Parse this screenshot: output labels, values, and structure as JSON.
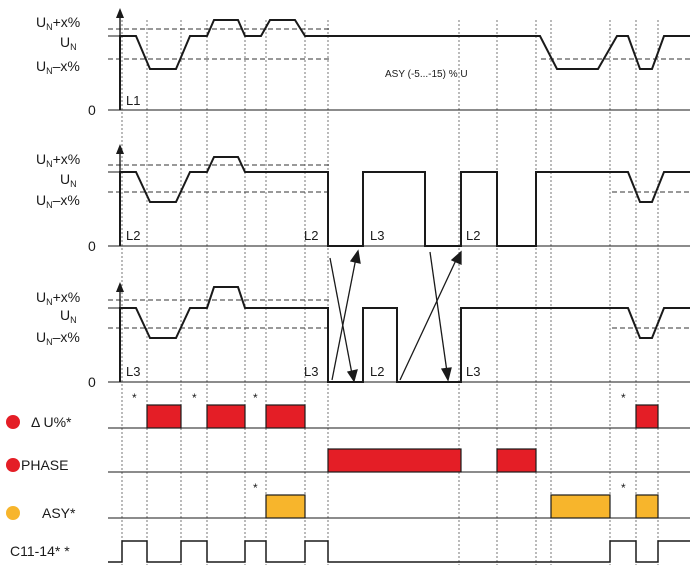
{
  "title": "",
  "colors": {
    "line": "#1a1a1a",
    "grid": "#555555",
    "red": "#e41e26",
    "yellow": "#f7b52c",
    "background": "#ffffff"
  },
  "panels": [
    {
      "label_upper": "U",
      "sub_upper": "N",
      "suffix_upper": "+x%",
      "label_nom": "U",
      "sub_nom": "N",
      "label_lower": "U",
      "sub_lower": "N",
      "suffix_lower": "–x%",
      "zero": "0",
      "phase_labels": [
        "L1"
      ],
      "annotation": "ASY (-5...-15) % U"
    },
    {
      "label_upper": "U",
      "sub_upper": "N",
      "suffix_upper": "+x%",
      "label_nom": "U",
      "sub_nom": "N",
      "label_lower": "U",
      "sub_lower": "N",
      "suffix_lower": "–x%",
      "zero": "0",
      "phase_labels": [
        "L2",
        "L2",
        "L3",
        "L2"
      ]
    },
    {
      "label_upper": "U",
      "sub_upper": "N",
      "suffix_upper": "+x%",
      "label_nom": "U",
      "sub_nom": "N",
      "label_lower": "U",
      "sub_lower": "N",
      "suffix_lower": "–x%",
      "zero": "0",
      "phase_labels": [
        "L3",
        "L3",
        "L2",
        "L3"
      ]
    }
  ],
  "signals": [
    {
      "name": "delta_u",
      "label": "Δ U%*",
      "dot_color": "red"
    },
    {
      "name": "phase",
      "label": "PHASE",
      "dot_color": "red"
    },
    {
      "name": "asy",
      "label": "ASY*",
      "dot_color": "yellow"
    },
    {
      "name": "relay",
      "label": "C11-14*  *"
    }
  ],
  "asterisk": "*"
}
